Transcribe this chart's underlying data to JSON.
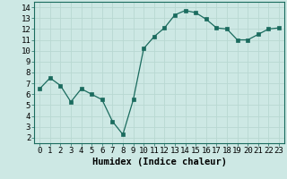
{
  "x": [
    0,
    1,
    2,
    3,
    4,
    5,
    6,
    7,
    8,
    9,
    10,
    11,
    12,
    13,
    14,
    15,
    16,
    17,
    18,
    19,
    20,
    21,
    22,
    23
  ],
  "y": [
    6.5,
    7.5,
    6.8,
    5.3,
    6.5,
    6.0,
    5.5,
    3.5,
    2.3,
    5.5,
    10.2,
    11.3,
    12.1,
    13.3,
    13.7,
    13.5,
    12.9,
    12.1,
    12.0,
    11.0,
    11.0,
    11.5,
    12.0,
    12.1
  ],
  "line_color": "#1a6b5e",
  "marker": "s",
  "marker_size": 2.5,
  "bg_color": "#cde8e4",
  "grid_color": "#b8d8d2",
  "xlabel": "Humidex (Indice chaleur)",
  "xlim": [
    -0.5,
    23.5
  ],
  "ylim": [
    1.5,
    14.5
  ],
  "xticks": [
    0,
    1,
    2,
    3,
    4,
    5,
    6,
    7,
    8,
    9,
    10,
    11,
    12,
    13,
    14,
    15,
    16,
    17,
    18,
    19,
    20,
    21,
    22,
    23
  ],
  "yticks": [
    2,
    3,
    4,
    5,
    6,
    7,
    8,
    9,
    10,
    11,
    12,
    13,
    14
  ],
  "xlabel_fontsize": 7.5,
  "tick_fontsize": 6.5
}
